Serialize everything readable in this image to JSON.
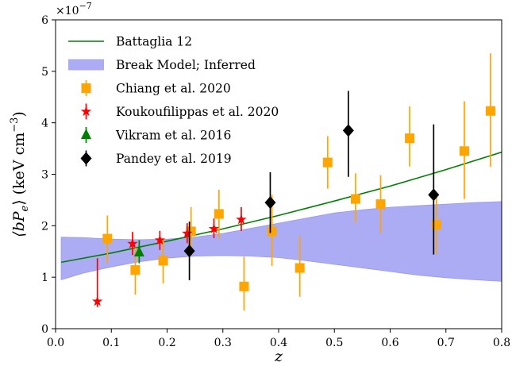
{
  "chart_data": {
    "type": "scatter",
    "xlabel": "z",
    "ylabel": "⟨bP",
    "ylabel_sub": "e",
    "ylabel_units": "⟩ (keV cm",
    "ylabel_exp": "−3",
    "ylabel_close": ")",
    "offset_base": "×10",
    "offset_exp": "−7",
    "xlim": [
      0.0,
      0.8
    ],
    "ylim": [
      0,
      6
    ],
    "x_ticks": [
      0.0,
      0.1,
      0.2,
      0.3,
      0.4,
      0.5,
      0.6,
      0.7,
      0.8
    ],
    "x_tick_labels": [
      "0.0",
      "0.1",
      "0.2",
      "0.3",
      "0.4",
      "0.5",
      "0.6",
      "0.7",
      "0.8"
    ],
    "y_ticks": [
      0,
      1,
      2,
      3,
      4,
      5,
      6
    ],
    "y_tick_labels": [
      "0",
      "1",
      "2",
      "3",
      "4",
      "5",
      "6"
    ],
    "grid": false,
    "legend_position": "upper-left",
    "series": [
      {
        "name": "Battaglia 12",
        "kind": "line",
        "color": "#008000",
        "points": [
          [
            0.01,
            1.29
          ],
          [
            0.1,
            1.47
          ],
          [
            0.2,
            1.7
          ],
          [
            0.3,
            1.94
          ],
          [
            0.4,
            2.2
          ],
          [
            0.5,
            2.48
          ],
          [
            0.6,
            2.77
          ],
          [
            0.7,
            3.09
          ],
          [
            0.8,
            3.43
          ]
        ]
      },
      {
        "name": "Break Model; Inferred",
        "kind": "band",
        "color": "#8c8cf0",
        "x": [
          0.01,
          0.05,
          0.1,
          0.15,
          0.2,
          0.25,
          0.3,
          0.35,
          0.4,
          0.45,
          0.5,
          0.55,
          0.6,
          0.65,
          0.7,
          0.75,
          0.8
        ],
        "lower": [
          0.95,
          1.08,
          1.2,
          1.3,
          1.37,
          1.41,
          1.42,
          1.41,
          1.38,
          1.32,
          1.25,
          1.18,
          1.11,
          1.04,
          0.99,
          0.95,
          0.92
        ],
        "upper": [
          1.78,
          1.77,
          1.74,
          1.73,
          1.74,
          1.78,
          1.85,
          1.95,
          2.05,
          2.15,
          2.25,
          2.31,
          2.36,
          2.39,
          2.42,
          2.45,
          2.47
        ]
      },
      {
        "name": "Chiang et al. 2020",
        "kind": "errorbar",
        "marker": "square",
        "color": "#ffa500",
        "points": [
          {
            "x": 0.093,
            "y": 1.75,
            "lo": 1.27,
            "hi": 2.2
          },
          {
            "x": 0.143,
            "y": 1.14,
            "lo": 0.66,
            "hi": 1.6
          },
          {
            "x": 0.193,
            "y": 1.32,
            "lo": 0.88,
            "hi": 1.75
          },
          {
            "x": 0.243,
            "y": 1.89,
            "lo": 1.44,
            "hi": 2.36
          },
          {
            "x": 0.293,
            "y": 2.23,
            "lo": 1.75,
            "hi": 2.7
          },
          {
            "x": 0.338,
            "y": 0.82,
            "lo": 0.35,
            "hi": 1.4
          },
          {
            "x": 0.388,
            "y": 1.89,
            "lo": 1.22,
            "hi": 2.6
          },
          {
            "x": 0.438,
            "y": 1.18,
            "lo": 0.62,
            "hi": 1.8
          },
          {
            "x": 0.488,
            "y": 3.23,
            "lo": 2.72,
            "hi": 3.74
          },
          {
            "x": 0.538,
            "y": 2.52,
            "lo": 2.06,
            "hi": 3.02
          },
          {
            "x": 0.583,
            "y": 2.42,
            "lo": 1.86,
            "hi": 2.98
          },
          {
            "x": 0.635,
            "y": 3.7,
            "lo": 3.15,
            "hi": 4.32
          },
          {
            "x": 0.683,
            "y": 2.02,
            "lo": 1.45,
            "hi": 2.6
          },
          {
            "x": 0.733,
            "y": 3.45,
            "lo": 2.52,
            "hi": 4.42
          },
          {
            "x": 0.78,
            "y": 4.23,
            "lo": 3.14,
            "hi": 5.35
          }
        ]
      },
      {
        "name": "Koukoufilippas et al. 2020",
        "kind": "errorbar",
        "marker": "star",
        "color": "#ff0000",
        "points": [
          {
            "x": 0.075,
            "y": 0.53,
            "lo": 0.42,
            "hi": 1.37
          },
          {
            "x": 0.138,
            "y": 1.65,
            "lo": 1.43,
            "hi": 1.88
          },
          {
            "x": 0.187,
            "y": 1.72,
            "lo": 1.53,
            "hi": 1.9
          },
          {
            "x": 0.236,
            "y": 1.85,
            "lo": 1.66,
            "hi": 2.05
          },
          {
            "x": 0.284,
            "y": 1.94,
            "lo": 1.76,
            "hi": 2.14
          },
          {
            "x": 0.333,
            "y": 2.12,
            "lo": 1.9,
            "hi": 2.36
          }
        ]
      },
      {
        "name": "Vikram et al. 2016",
        "kind": "errorbar",
        "marker": "triangle",
        "color": "#008000",
        "points": [
          {
            "x": 0.15,
            "y": 1.48,
            "lo": 1.27,
            "hi": 1.72
          }
        ]
      },
      {
        "name": "Pandey et al. 2019",
        "kind": "errorbar",
        "marker": "diamond",
        "color": "#000000",
        "points": [
          {
            "x": 0.24,
            "y": 1.51,
            "lo": 0.94,
            "hi": 2.08
          },
          {
            "x": 0.385,
            "y": 2.45,
            "lo": 1.86,
            "hi": 3.04
          },
          {
            "x": 0.525,
            "y": 3.85,
            "lo": 2.95,
            "hi": 4.62
          },
          {
            "x": 0.678,
            "y": 2.6,
            "lo": 1.44,
            "hi": 3.97
          }
        ]
      }
    ]
  }
}
